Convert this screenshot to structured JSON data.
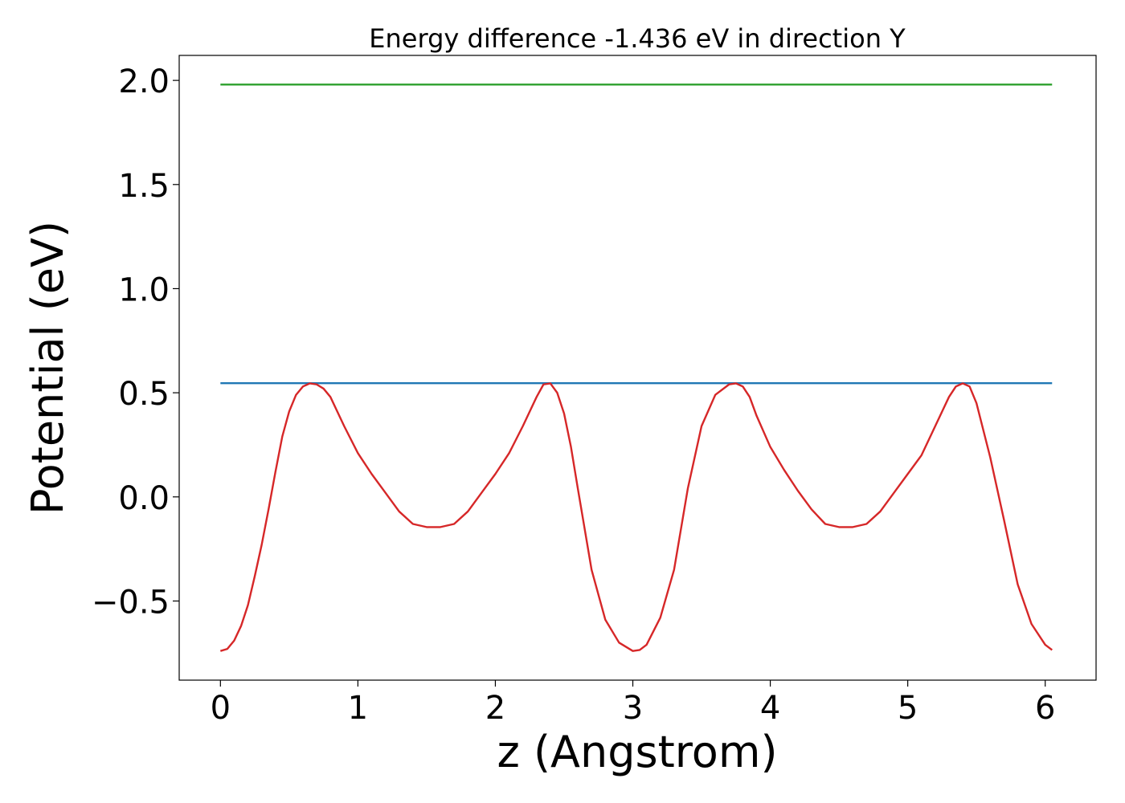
{
  "chart_data": {
    "type": "line",
    "title": "Energy difference -1.436 eV in direction Y",
    "xlabel": "z (Angstrom)",
    "ylabel": "Potential (eV)",
    "xlim": [
      -0.3,
      6.37
    ],
    "ylim": [
      -0.88,
      2.12
    ],
    "xticks": [
      0,
      1,
      2,
      3,
      4,
      5,
      6
    ],
    "xtick_labels": [
      "0",
      "1",
      "2",
      "3",
      "4",
      "5",
      "6"
    ],
    "yticks": [
      -0.5,
      0.0,
      0.5,
      1.0,
      1.5,
      2.0
    ],
    "ytick_labels": [
      "−0.5",
      "0.0",
      "0.5",
      "1.0",
      "1.5",
      "2.0"
    ],
    "grid": false,
    "series": [
      {
        "color": "#d62728",
        "x": [
          0.0,
          0.05,
          0.1,
          0.15,
          0.2,
          0.25,
          0.3,
          0.35,
          0.4,
          0.45,
          0.5,
          0.55,
          0.6,
          0.65,
          0.7,
          0.75,
          0.8,
          0.9,
          1.0,
          1.1,
          1.2,
          1.3,
          1.4,
          1.5,
          1.6,
          1.7,
          1.8,
          1.9,
          2.0,
          2.1,
          2.2,
          2.3,
          2.35,
          2.4,
          2.45,
          2.5,
          2.55,
          2.6,
          2.7,
          2.8,
          2.9,
          3.0,
          3.05,
          3.1,
          3.2,
          3.3,
          3.4,
          3.5,
          3.6,
          3.7,
          3.75,
          3.8,
          3.85,
          3.9,
          4.0,
          4.1,
          4.2,
          4.3,
          4.4,
          4.5,
          4.6,
          4.7,
          4.8,
          4.9,
          5.0,
          5.1,
          5.2,
          5.3,
          5.35,
          5.4,
          5.45,
          5.5,
          5.6,
          5.7,
          5.8,
          5.9,
          6.0,
          6.05
        ],
        "values": [
          -0.74,
          -0.73,
          -0.69,
          -0.62,
          -0.52,
          -0.38,
          -0.23,
          -0.06,
          0.12,
          0.29,
          0.41,
          0.49,
          0.53,
          0.545,
          0.54,
          0.52,
          0.48,
          0.34,
          0.21,
          0.11,
          0.02,
          -0.07,
          -0.13,
          -0.145,
          -0.145,
          -0.13,
          -0.07,
          0.02,
          0.11,
          0.21,
          0.34,
          0.48,
          0.54,
          0.545,
          0.5,
          0.4,
          0.24,
          0.04,
          -0.35,
          -0.59,
          -0.7,
          -0.74,
          -0.735,
          -0.71,
          -0.58,
          -0.35,
          0.04,
          0.34,
          0.49,
          0.54,
          0.545,
          0.53,
          0.48,
          0.39,
          0.24,
          0.13,
          0.03,
          -0.06,
          -0.13,
          -0.145,
          -0.145,
          -0.13,
          -0.07,
          0.02,
          0.11,
          0.2,
          0.34,
          0.48,
          0.53,
          0.545,
          0.53,
          0.45,
          0.19,
          -0.11,
          -0.42,
          -0.61,
          -0.71,
          -0.735
        ]
      },
      {
        "color": "#1f77b4",
        "x": [
          0.0,
          6.05
        ],
        "values": [
          0.546,
          0.546
        ]
      },
      {
        "color": "#2ca02c",
        "x": [
          0.0,
          6.05
        ],
        "values": [
          1.98,
          1.98
        ]
      }
    ]
  }
}
